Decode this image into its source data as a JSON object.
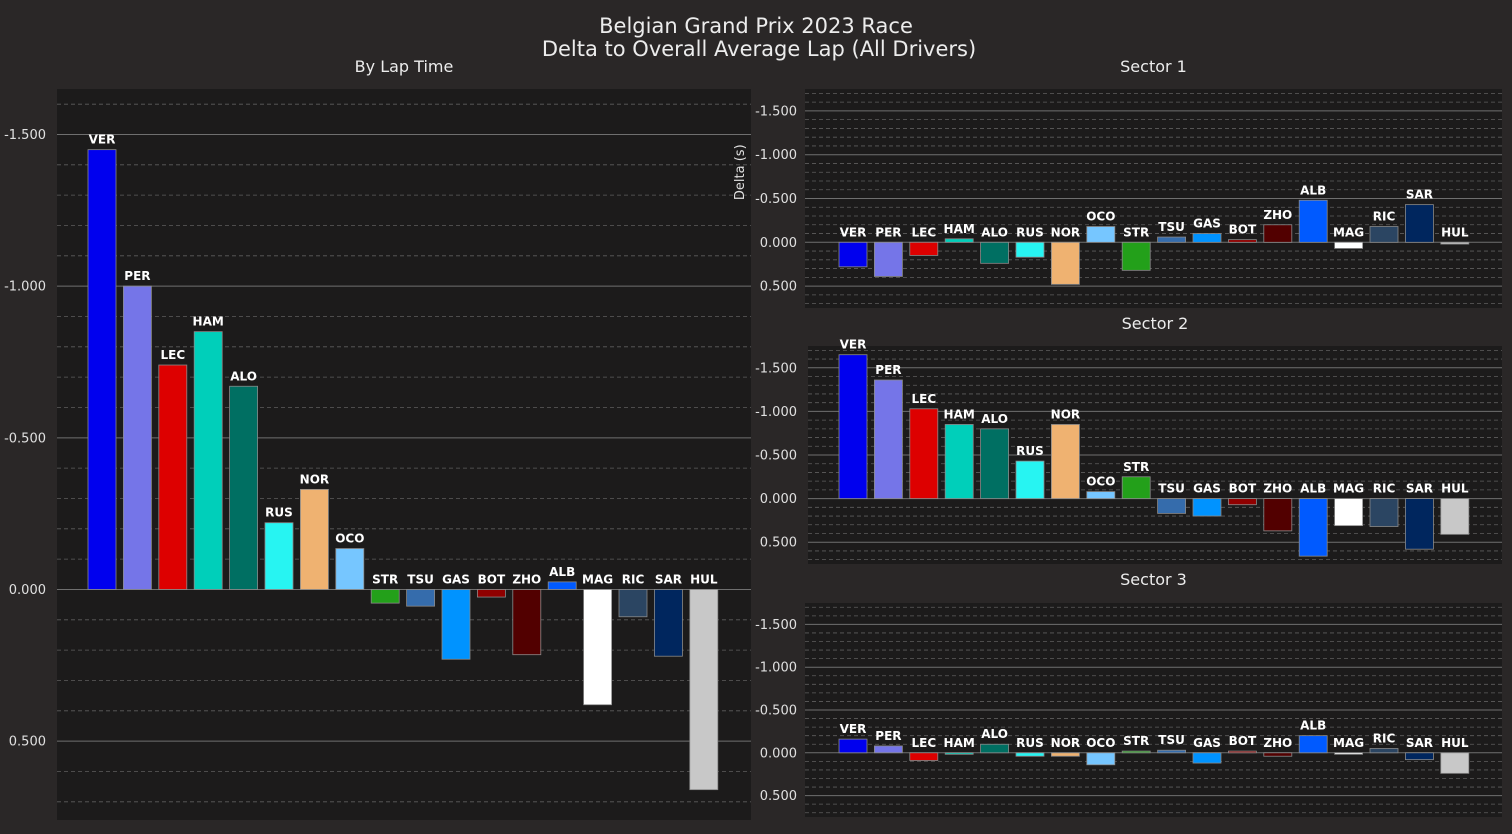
{
  "figure": {
    "title_line1": "Belgian Grand Prix 2023 Race",
    "title_line2": "Delta to Overall Average Lap (All Drivers)",
    "background": "#2a2727",
    "plot_background": "#1c1b1b"
  },
  "chart_data": [
    {
      "type": "bar",
      "title": "By Lap Time",
      "ylabel": "",
      "y_inverted": true,
      "ylim": [
        -1.65,
        0.76
      ],
      "yticks": [
        -1.5,
        -1.0,
        -0.5,
        0.0,
        0.5
      ],
      "ytick_labels": [
        "-1.500",
        "-1.000",
        "-0.500",
        "0.000",
        "0.500"
      ],
      "categories": [
        "VER",
        "PER",
        "LEC",
        "HAM",
        "ALO",
        "RUS",
        "NOR",
        "OCO",
        "STR",
        "TSU",
        "GAS",
        "BOT",
        "ZHO",
        "ALB",
        "MAG",
        "RIC",
        "SAR",
        "HUL"
      ],
      "values": [
        -1.45,
        -1.0,
        -0.74,
        -0.85,
        -0.67,
        -0.22,
        -0.33,
        -0.135,
        0.045,
        0.055,
        0.23,
        0.025,
        0.215,
        -0.025,
        0.38,
        0.09,
        0.22,
        0.66
      ],
      "colors": [
        "#0000ee",
        "#7575e8",
        "#dd0000",
        "#00cfba",
        "#006f62",
        "#27f4f2",
        "#efb271",
        "#76c6ff",
        "#23a01a",
        "#356cac",
        "#0093ff",
        "#900000",
        "#520000",
        "#005aff",
        "#ffffff",
        "#2b4562",
        "#00265e",
        "#c8c8c8"
      ],
      "grid": true
    },
    {
      "type": "bar",
      "title": "Sector 1",
      "ylabel": "Delta (s)",
      "y_inverted": true,
      "ylim": [
        -1.75,
        0.75
      ],
      "yticks": [
        -1.5,
        -1.0,
        -0.5,
        0.0,
        0.5
      ],
      "ytick_labels": [
        "-1.500",
        "-1.000",
        "-0.500",
        "0.000",
        "0.500"
      ],
      "categories": [
        "VER",
        "PER",
        "LEC",
        "HAM",
        "ALO",
        "RUS",
        "NOR",
        "OCO",
        "STR",
        "TSU",
        "GAS",
        "BOT",
        "ZHO",
        "ALB",
        "MAG",
        "RIC",
        "SAR",
        "HUL"
      ],
      "values": [
        0.28,
        0.39,
        0.15,
        -0.04,
        0.24,
        0.17,
        0.48,
        -0.18,
        0.32,
        -0.06,
        -0.1,
        -0.03,
        -0.2,
        -0.48,
        0.07,
        -0.18,
        -0.43,
        0.02
      ],
      "colors": [
        "#0000ee",
        "#7575e8",
        "#dd0000",
        "#00cfba",
        "#006f62",
        "#27f4f2",
        "#efb271",
        "#76c6ff",
        "#23a01a",
        "#356cac",
        "#0093ff",
        "#900000",
        "#520000",
        "#005aff",
        "#ffffff",
        "#2b4562",
        "#00265e",
        "#c8c8c8"
      ],
      "grid": true
    },
    {
      "type": "bar",
      "title": "Sector 2",
      "ylabel": "",
      "y_inverted": true,
      "ylim": [
        -1.75,
        0.75
      ],
      "yticks": [
        -1.5,
        -1.0,
        -0.5,
        0.0,
        0.5
      ],
      "ytick_labels": [
        "-1.500",
        "-1.000",
        "-0.500",
        "0.000",
        "0.500"
      ],
      "categories": [
        "VER",
        "PER",
        "LEC",
        "HAM",
        "ALO",
        "RUS",
        "NOR",
        "OCO",
        "STR",
        "TSU",
        "GAS",
        "BOT",
        "ZHO",
        "ALB",
        "MAG",
        "RIC",
        "SAR",
        "HUL"
      ],
      "values": [
        -1.65,
        -1.36,
        -1.03,
        -0.85,
        -0.8,
        -0.43,
        -0.85,
        -0.08,
        -0.25,
        0.17,
        0.2,
        0.07,
        0.37,
        0.66,
        0.31,
        0.32,
        0.58,
        0.41
      ],
      "colors": [
        "#0000ee",
        "#7575e8",
        "#dd0000",
        "#00cfba",
        "#006f62",
        "#27f4f2",
        "#efb271",
        "#76c6ff",
        "#23a01a",
        "#356cac",
        "#0093ff",
        "#900000",
        "#520000",
        "#005aff",
        "#ffffff",
        "#2b4562",
        "#00265e",
        "#c8c8c8"
      ],
      "grid": true
    },
    {
      "type": "bar",
      "title": "Sector 3",
      "ylabel": "",
      "y_inverted": true,
      "ylim": [
        -1.75,
        0.75
      ],
      "yticks": [
        -1.5,
        -1.0,
        -0.5,
        0.0,
        0.5
      ],
      "ytick_labels": [
        "-1.500",
        "-1.000",
        "-0.500",
        "0.000",
        "0.500"
      ],
      "categories": [
        "VER",
        "PER",
        "LEC",
        "HAM",
        "ALO",
        "RUS",
        "NOR",
        "OCO",
        "STR",
        "TSU",
        "GAS",
        "BOT",
        "ZHO",
        "ALB",
        "MAG",
        "RIC",
        "SAR",
        "HUL"
      ],
      "values": [
        -0.16,
        -0.08,
        0.09,
        0.0,
        -0.1,
        0.04,
        0.04,
        0.14,
        -0.02,
        -0.03,
        0.12,
        -0.02,
        0.04,
        -0.2,
        0.0,
        -0.05,
        0.08,
        0.24
      ],
      "colors": [
        "#0000ee",
        "#7575e8",
        "#dd0000",
        "#00cfba",
        "#006f62",
        "#27f4f2",
        "#efb271",
        "#76c6ff",
        "#23a01a",
        "#356cac",
        "#0093ff",
        "#900000",
        "#520000",
        "#005aff",
        "#ffffff",
        "#2b4562",
        "#00265e",
        "#c8c8c8"
      ],
      "grid": true
    }
  ]
}
